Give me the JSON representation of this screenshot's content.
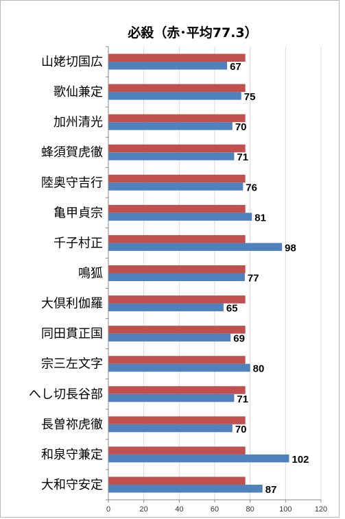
{
  "chart_data": {
    "type": "bar",
    "orientation": "horizontal",
    "title": "必殺（赤･平均77.3）",
    "categories": [
      "山姥切国広",
      "歌仙兼定",
      "加州清光",
      "蜂須賀虎徹",
      "陸奥守吉行",
      "亀甲貞宗",
      "千子村正",
      "鳴狐",
      "大倶利伽羅",
      "同田貫正国",
      "宗三左文字",
      "へし切長谷部",
      "長曽祢虎徹",
      "和泉守兼定",
      "大和守安定"
    ],
    "series": [
      {
        "color": "#c0504d",
        "values": [
          77.3,
          77.3,
          77.3,
          77.3,
          77.3,
          77.3,
          77.3,
          77.3,
          77.3,
          77.3,
          77.3,
          77.3,
          77.3,
          77.3,
          77.3
        ],
        "labeled": false
      },
      {
        "color": "#4f81bd",
        "values": [
          67,
          75,
          70,
          71,
          76,
          81,
          98,
          77,
          65,
          69,
          80,
          71,
          70,
          102,
          87
        ],
        "labeled": true
      }
    ],
    "xlim": [
      0,
      120
    ],
    "xticks": [
      0,
      20,
      40,
      60,
      80,
      100,
      120
    ],
    "grid": true,
    "legend": "none"
  }
}
